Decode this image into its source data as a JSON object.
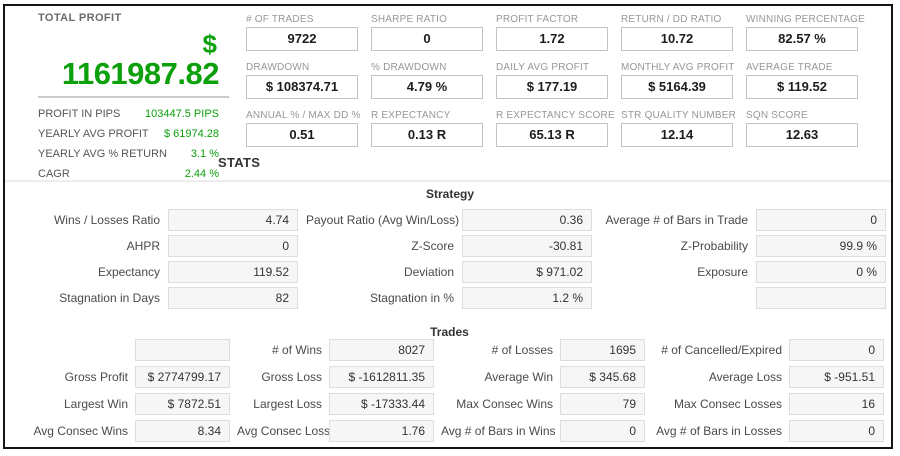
{
  "colors": {
    "profit_green": "#0CA00C",
    "frame_border": "#141414",
    "box_bg_gray": "#f6f6f6",
    "label_gray": "#979797"
  },
  "left_panel": {
    "title": "TOTAL PROFIT",
    "currency_symbol": "$",
    "total_profit": "1161987.82",
    "metrics": [
      {
        "label": "PROFIT IN PIPS",
        "value": "103447.5 PIPS"
      },
      {
        "label": "YEARLY AVG PROFIT",
        "value": "$ 61974.28"
      },
      {
        "label": "YEARLY AVG % RETURN",
        "value": "3.1 %"
      },
      {
        "label": "CAGR",
        "value": "2.44 %"
      }
    ]
  },
  "top_grid": {
    "cells": [
      {
        "label": "# OF TRADES",
        "value": "9722"
      },
      {
        "label": "SHARPE RATIO",
        "value": "0"
      },
      {
        "label": "PROFIT FACTOR",
        "value": "1.72"
      },
      {
        "label": "RETURN / DD RATIO",
        "value": "10.72"
      },
      {
        "label": "WINNING PERCENTAGE",
        "value": "82.57 %"
      },
      {
        "label": "DRAWDOWN",
        "value": "$ 108374.71"
      },
      {
        "label": "% DRAWDOWN",
        "value": "4.79 %"
      },
      {
        "label": "DAILY AVG PROFIT",
        "value": "$ 177.19"
      },
      {
        "label": "MONTHLY AVG PROFIT",
        "value": "$ 5164.39"
      },
      {
        "label": "AVERAGE TRADE",
        "value": "$ 119.52"
      },
      {
        "label": "ANNUAL % / MAX DD %",
        "value": "0.51"
      },
      {
        "label": "R EXPECTANCY",
        "value": "0.13 R"
      },
      {
        "label": "R EXPECTANCY SCORE",
        "value": "65.13 R"
      },
      {
        "label": "STR QUALITY NUMBER",
        "value": "12.14"
      },
      {
        "label": "SQN SCORE",
        "value": "12.63"
      }
    ]
  },
  "stats_heading": "STATS",
  "strategy": {
    "heading": "Strategy",
    "rows": [
      [
        {
          "label": "Wins / Losses Ratio",
          "value": "4.74"
        },
        {
          "label": "Payout Ratio (Avg Win/Loss)",
          "value": "0.36"
        },
        {
          "label": "Average # of Bars in Trade",
          "value": "0"
        }
      ],
      [
        {
          "label": "AHPR",
          "value": "0"
        },
        {
          "label": "Z-Score",
          "value": "-30.81"
        },
        {
          "label": "Z-Probability",
          "value": "99.9 %"
        }
      ],
      [
        {
          "label": "Expectancy",
          "value": "119.52"
        },
        {
          "label": "Deviation",
          "value": "$ 971.02"
        },
        {
          "label": "Exposure",
          "value": "0 %"
        }
      ],
      [
        {
          "label": "Stagnation in Days",
          "value": "82"
        },
        {
          "label": "Stagnation in %",
          "value": "1.2 %"
        },
        {
          "label": "",
          "value": ""
        }
      ]
    ]
  },
  "trades": {
    "heading": "Trades",
    "rows": [
      [
        {
          "label": "",
          "value": ""
        },
        {
          "label": "# of Wins",
          "value": "8027"
        },
        {
          "label": "# of Losses",
          "value": "1695"
        },
        {
          "label": "# of Cancelled/Expired",
          "value": "0"
        }
      ],
      [
        {
          "label": "Gross Profit",
          "value": "$ 2774799.17"
        },
        {
          "label": "Gross Loss",
          "value": "$ -1612811.35"
        },
        {
          "label": "Average Win",
          "value": "$ 345.68"
        },
        {
          "label": "Average Loss",
          "value": "$ -951.51"
        }
      ],
      [
        {
          "label": "Largest Win",
          "value": "$ 7872.51"
        },
        {
          "label": "Largest Loss",
          "value": "$ -17333.44"
        },
        {
          "label": "Max Consec Wins",
          "value": "79"
        },
        {
          "label": "Max Consec Losses",
          "value": "16"
        }
      ],
      [
        {
          "label": "Avg Consec Wins",
          "value": "8.34"
        },
        {
          "label": "Avg Consec Loss",
          "value": "1.76"
        },
        {
          "label": "Avg # of Bars in Wins",
          "value": "0"
        },
        {
          "label": "Avg # of Bars in Losses",
          "value": "0"
        }
      ]
    ]
  }
}
